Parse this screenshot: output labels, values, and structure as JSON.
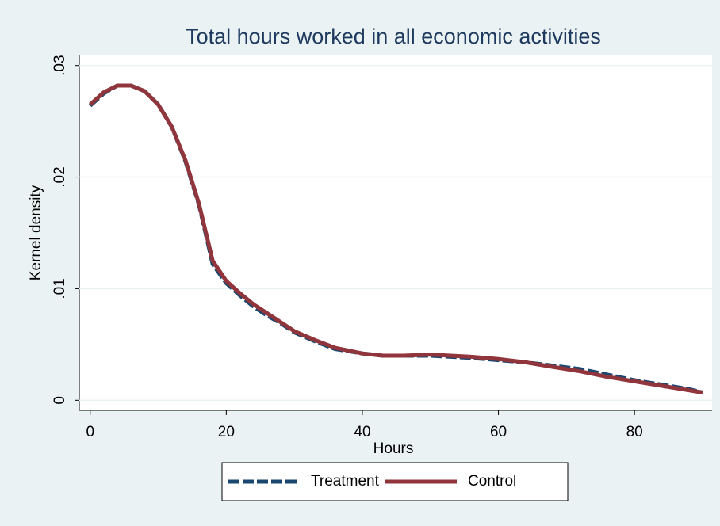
{
  "chart_data": {
    "type": "line",
    "title": "Total hours worked in all economic activities",
    "xlabel": "Hours",
    "ylabel": "Kernel density",
    "x": [
      0,
      2,
      4,
      6,
      8,
      10,
      12,
      14,
      16,
      18,
      20,
      22,
      24,
      26,
      28,
      30,
      33,
      36,
      40,
      43,
      46,
      50,
      53,
      56,
      60,
      64,
      68,
      72,
      76,
      80,
      84,
      88,
      90
    ],
    "series": [
      {
        "name": "Treatment",
        "color": "#1a476f",
        "line_style": "dashed",
        "values": [
          0.0264,
          0.0275,
          0.0282,
          0.0282,
          0.0277,
          0.0265,
          0.0245,
          0.0214,
          0.0175,
          0.0122,
          0.0105,
          0.0094,
          0.0084,
          0.0076,
          0.0069,
          0.0061,
          0.0053,
          0.0046,
          0.0042,
          0.004,
          0.004,
          0.004,
          0.0039,
          0.0038,
          0.0036,
          0.0034,
          0.0031,
          0.0028,
          0.0023,
          0.0018,
          0.0014,
          0.001,
          0.0007
        ]
      },
      {
        "name": "Control",
        "color": "#90353b",
        "line_style": "solid",
        "values": [
          0.0265,
          0.0276,
          0.0282,
          0.0282,
          0.0277,
          0.0265,
          0.0245,
          0.0215,
          0.0176,
          0.0125,
          0.0107,
          0.0096,
          0.0086,
          0.0078,
          0.007,
          0.0062,
          0.0054,
          0.0047,
          0.0042,
          0.004,
          0.004,
          0.0041,
          0.004,
          0.0039,
          0.0037,
          0.0034,
          0.003,
          0.0026,
          0.0021,
          0.0017,
          0.0013,
          0.0009,
          0.0007
        ]
      }
    ],
    "xlim": [
      -1.6,
      91.4
    ],
    "xticks": [
      0,
      20,
      40,
      60,
      80
    ],
    "ylim": [
      -0.0009,
      0.0309
    ],
    "yticks": [
      0,
      {
        "value": 0.01,
        "label": ".01"
      },
      {
        "value": 0.02,
        "label": ".02"
      },
      {
        "value": 0.03,
        "label": ".03"
      }
    ],
    "grid": true,
    "legend": "bottom"
  }
}
